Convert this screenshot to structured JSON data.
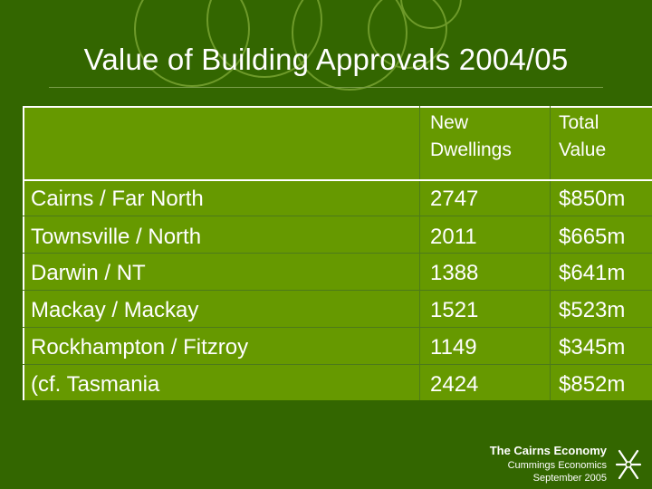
{
  "slide": {
    "title": "Value of Building Approvals 2004/05"
  },
  "table": {
    "headers": [
      "",
      "New Dwellings",
      "Total Value"
    ],
    "rows": [
      {
        "region": "Cairns / Far North",
        "new_dwellings": "2747",
        "total_value": "$850m"
      },
      {
        "region": "Townsville / North",
        "new_dwellings": "2011",
        "total_value": "$665m"
      },
      {
        "region": "Darwin / NT",
        "new_dwellings": "1388",
        "total_value": "$641m"
      },
      {
        "region": "Mackay / Mackay",
        "new_dwellings": "1521",
        "total_value": "$523m"
      },
      {
        "region": "Rockhampton / Fitzroy",
        "new_dwellings": "1149",
        "total_value": "$345m"
      },
      {
        "region": "(cf. Tasmania",
        "new_dwellings": "2424",
        "total_value": "$852m"
      }
    ]
  },
  "footer": {
    "line1": "The Cairns Economy",
    "line2": "Cummings Economics",
    "line3": "September 2005"
  },
  "colors": {
    "background": "#336600",
    "table_fill": "#669900",
    "text": "#ffffff"
  }
}
